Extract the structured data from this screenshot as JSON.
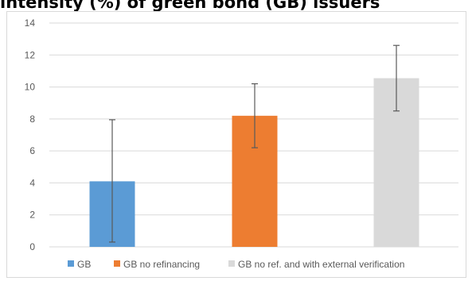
{
  "chart_data": {
    "type": "bar",
    "title": "intensity (%) of green bond (GB) issuers",
    "categories": [
      "GB",
      "GB no refinancing",
      "GB no ref. and with external verification"
    ],
    "series": [
      {
        "name": "GB",
        "value": 4.1,
        "error_low": 0.3,
        "error_high": 7.95,
        "color": "#5b9bd5"
      },
      {
        "name": "GB no refinancing",
        "value": 8.2,
        "error_low": 6.2,
        "error_high": 10.2,
        "color": "#ed7d31"
      },
      {
        "name": "GB no ref. and with external verification",
        "value": 10.55,
        "error_low": 8.5,
        "error_high": 12.6,
        "color": "#d9d9d9"
      }
    ],
    "yticks": [
      "0",
      "2",
      "4",
      "6",
      "8",
      "10",
      "12",
      "14"
    ],
    "ylim": [
      0,
      14
    ],
    "grid": true,
    "gridColor": "#d9d9d9",
    "errorBarColor": "#595959",
    "legend_position": "bottom",
    "xlabel": "",
    "ylabel": ""
  }
}
